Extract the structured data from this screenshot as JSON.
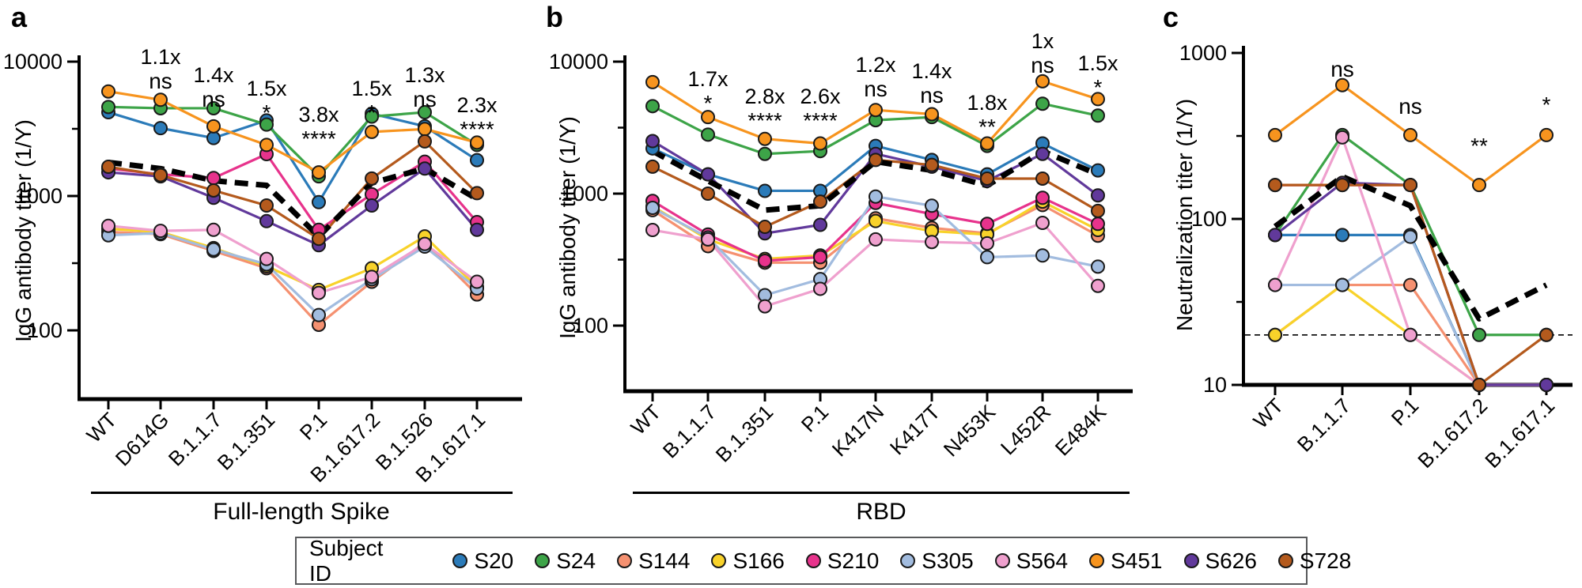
{
  "figure": {
    "legend": {
      "title": "Subject ID",
      "subjects": [
        {
          "id": "S20",
          "color": "#2b7bb9"
        },
        {
          "id": "S24",
          "color": "#3da448"
        },
        {
          "id": "S144",
          "color": "#f59171"
        },
        {
          "id": "S166",
          "color": "#f8d22a"
        },
        {
          "id": "S210",
          "color": "#e7338c"
        },
        {
          "id": "S305",
          "color": "#a2bcdf"
        },
        {
          "id": "S564",
          "color": "#efa0ce"
        },
        {
          "id": "S451",
          "color": "#f7941e"
        },
        {
          "id": "S626",
          "color": "#61399b"
        },
        {
          "id": "S728",
          "color": "#b45a1d"
        }
      ]
    },
    "mean_line_color": "#000000"
  },
  "chart_data": [
    {
      "type": "line",
      "panel_letter": "a",
      "ylabel": "IgG antibody titer (1/Y)",
      "group_label": "Full-length Spike",
      "y_axis": {
        "scale": "log",
        "tick_values": [
          10000,
          1000,
          100
        ],
        "top": 10000
      },
      "categories": [
        "WT",
        "D614G",
        "B.1.1.7",
        "B.1.351",
        "P.1",
        "B.1.617.2",
        "B.1.526",
        "B.1.617.1"
      ],
      "annotations": [
        {
          "category": "D614G",
          "fold": "1.1x",
          "sig": "ns",
          "ann_y": 72
        },
        {
          "category": "B.1.1.7",
          "fold": "1.4x",
          "sig": "ns",
          "ann_y": 95
        },
        {
          "category": "B.1.351",
          "fold": "1.5x",
          "sig": "*",
          "ann_y": 112
        },
        {
          "category": "P.1",
          "fold": "3.8x",
          "sig": "****",
          "ann_y": 145
        },
        {
          "category": "B.1.617.2",
          "fold": "1.5x",
          "sig": "*",
          "ann_y": 112
        },
        {
          "category": "B.1.526",
          "fold": "1.3x",
          "sig": "ns",
          "ann_y": 95
        },
        {
          "category": "B.1.617.1",
          "fold": "2.3x",
          "sig": "****",
          "ann_y": 133
        }
      ],
      "series": [
        {
          "name": "S20",
          "values": [
            4200,
            3200,
            2700,
            3650,
            900,
            4100,
            3300,
            1850
          ]
        },
        {
          "name": "S24",
          "values": [
            4600,
            4500,
            4500,
            3400,
            1400,
            3900,
            4200,
            2400
          ]
        },
        {
          "name": "S144",
          "values": [
            540,
            520,
            390,
            290,
            110,
            230,
            450,
            185
          ]
        },
        {
          "name": "S166",
          "values": [
            570,
            540,
            410,
            300,
            200,
            290,
            500,
            210
          ]
        },
        {
          "name": "S210",
          "values": [
            1600,
            1450,
            1360,
            2050,
            560,
            1030,
            1800,
            640
          ]
        },
        {
          "name": "S305",
          "values": [
            510,
            530,
            400,
            310,
            130,
            240,
            420,
            205
          ]
        },
        {
          "name": "S564",
          "values": [
            600,
            550,
            560,
            340,
            190,
            250,
            440,
            230
          ]
        },
        {
          "name": "S451",
          "values": [
            6000,
            5200,
            3300,
            2400,
            1500,
            3000,
            3150,
            2500
          ]
        },
        {
          "name": "S626",
          "values": [
            1500,
            1400,
            970,
            650,
            430,
            850,
            1600,
            560
          ]
        },
        {
          "name": "S728",
          "values": [
            1650,
            1430,
            1100,
            850,
            480,
            1350,
            2550,
            1050
          ]
        }
      ],
      "mean_series": {
        "name": "geometric-mean",
        "style": "dashed",
        "values": [
          1780,
          1600,
          1300,
          1200,
          500,
          1250,
          1600,
          950
        ]
      }
    },
    {
      "type": "line",
      "panel_letter": "b",
      "ylabel": "IgG antibody titer (1/Y)",
      "group_label": "RBD",
      "y_axis": {
        "scale": "log",
        "tick_values": [
          10000,
          1000,
          100
        ],
        "top": 10000
      },
      "categories": [
        "WT",
        "B.1.1.7",
        "B.1.351",
        "P.1",
        "K417N",
        "K417T",
        "N453K",
        "L452R",
        "E484K"
      ],
      "annotations": [
        {
          "category": "B.1.1.7",
          "fold": "1.7x",
          "sig": "*",
          "ann_y": 100
        },
        {
          "category": "B.1.351",
          "fold": "2.8x",
          "sig": "****",
          "ann_y": 122
        },
        {
          "category": "P.1",
          "fold": "2.6x",
          "sig": "****",
          "ann_y": 122
        },
        {
          "category": "K417N",
          "fold": "1.2x",
          "sig": "ns",
          "ann_y": 82
        },
        {
          "category": "K417T",
          "fold": "1.4x",
          "sig": "ns",
          "ann_y": 90
        },
        {
          "category": "N453K",
          "fold": "1.8x",
          "sig": "**",
          "ann_y": 130
        },
        {
          "category": "L452R",
          "fold": "1x",
          "sig": "ns",
          "ann_y": 52
        },
        {
          "category": "E484K",
          "fold": "1.5x",
          "sig": "*",
          "ann_y": 80
        }
      ],
      "series": [
        {
          "name": "S20",
          "values": [
            2200,
            1400,
            1050,
            1050,
            2300,
            1800,
            1400,
            2400,
            1500
          ]
        },
        {
          "name": "S24",
          "values": [
            4600,
            2800,
            2000,
            2100,
            3600,
            3800,
            2300,
            4800,
            3900
          ]
        },
        {
          "name": "S144",
          "values": [
            750,
            400,
            300,
            300,
            650,
            550,
            500,
            820,
            480
          ]
        },
        {
          "name": "S166",
          "values": [
            800,
            450,
            320,
            340,
            620,
            520,
            490,
            870,
            530
          ]
        },
        {
          "name": "S210",
          "values": [
            880,
            490,
            310,
            330,
            850,
            700,
            590,
            930,
            590
          ]
        },
        {
          "name": "S305",
          "values": [
            780,
            465,
            170,
            225,
            950,
            810,
            330,
            340,
            280
          ]
        },
        {
          "name": "S564",
          "values": [
            530,
            450,
            140,
            190,
            450,
            430,
            420,
            600,
            200
          ]
        },
        {
          "name": "S451",
          "values": [
            7000,
            3800,
            2600,
            2400,
            4300,
            4000,
            2400,
            7100,
            5200
          ]
        },
        {
          "name": "S626",
          "values": [
            2500,
            1400,
            500,
            580,
            2000,
            1600,
            1250,
            2000,
            970
          ]
        },
        {
          "name": "S728",
          "values": [
            1600,
            1000,
            560,
            870,
            1800,
            1650,
            1300,
            1300,
            740
          ]
        }
      ],
      "mean_series": {
        "name": "geometric-mean",
        "style": "dashed",
        "values": [
          2100,
          1250,
          750,
          810,
          1750,
          1500,
          1150,
          2100,
          1400
        ]
      }
    },
    {
      "type": "line",
      "panel_letter": "c",
      "ylabel": "Neutralization titer (1/Y)",
      "group_label": "",
      "y_axis": {
        "scale": "log",
        "tick_values": [
          1000,
          100,
          10
        ],
        "top": 1000
      },
      "detection_limit": 20,
      "categories": [
        "WT",
        "B.1.1.7",
        "P.1",
        "B.1.617.2",
        "B.1.617.1"
      ],
      "annotations": [
        {
          "category": "B.1.1.7",
          "fold": "",
          "sig": "ns",
          "ann_y": 88
        },
        {
          "category": "P.1",
          "fold": "",
          "sig": "ns",
          "ann_y": 135
        },
        {
          "category": "B.1.617.2",
          "fold": "",
          "sig": "**",
          "ann_y": 185
        },
        {
          "category": "B.1.617.1",
          "fold": "",
          "sig": "*",
          "ann_y": 133
        }
      ],
      "series": [
        {
          "name": "S20",
          "values": [
            80,
            80,
            80,
            10,
            10
          ]
        },
        {
          "name": "S24",
          "values": [
            80,
            320,
            160,
            20,
            20
          ]
        },
        {
          "name": "S144",
          "values": [
            20,
            40,
            40,
            10,
            10
          ]
        },
        {
          "name": "S166",
          "values": [
            20,
            40,
            20,
            10,
            10
          ]
        },
        {
          "name": "S210",
          "values": [
            160,
            160,
            160,
            10,
            10
          ]
        },
        {
          "name": "S305",
          "values": [
            40,
            40,
            78,
            10,
            10
          ]
        },
        {
          "name": "S564",
          "values": [
            40,
            310,
            20,
            10,
            10
          ]
        },
        {
          "name": "S451",
          "values": [
            320,
            640,
            320,
            160,
            320
          ]
        },
        {
          "name": "S626",
          "values": [
            80,
            165,
            160,
            10,
            10
          ]
        },
        {
          "name": "S728",
          "values": [
            160,
            160,
            160,
            10,
            20
          ]
        }
      ],
      "mean_series": {
        "name": "geometric-mean",
        "style": "dashed",
        "values": [
          90,
          180,
          120,
          25,
          40
        ]
      }
    }
  ]
}
